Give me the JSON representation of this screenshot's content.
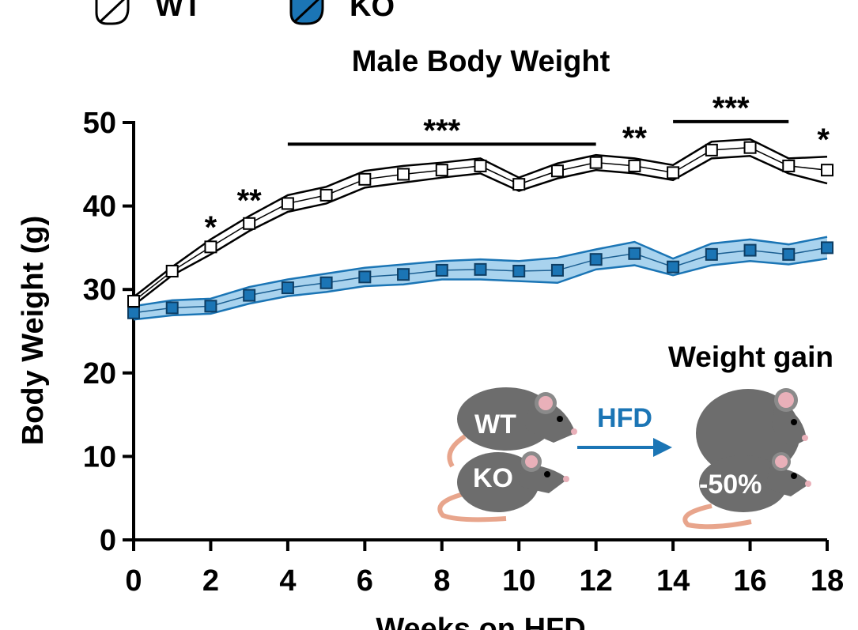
{
  "legend": [
    {
      "label": "WT",
      "fill": "#ffffff"
    },
    {
      "label": "KO",
      "fill": "#1b75b5"
    }
  ],
  "colors": {
    "wt": "#000000",
    "ko": "#1b75b5",
    "ko_band": "#a9d3ee"
  },
  "chart_data": {
    "type": "line",
    "title": "Male Body Weight",
    "xlabel": "Weeks on HFD",
    "ylabel": "Body Weight (g)",
    "xlim": [
      0,
      18
    ],
    "ylim": [
      0,
      50
    ],
    "x_ticks": [
      0,
      2,
      4,
      6,
      8,
      10,
      12,
      14,
      16,
      18
    ],
    "y_ticks": [
      0,
      10,
      20,
      30,
      40,
      50
    ],
    "x": [
      0,
      1,
      2,
      3,
      4,
      5,
      6,
      7,
      8,
      9,
      10,
      11,
      12,
      13,
      14,
      15,
      16,
      17,
      18
    ],
    "series": [
      {
        "name": "WT",
        "values": [
          28.6,
          32.2,
          35.1,
          37.9,
          40.3,
          41.3,
          43.2,
          43.8,
          44.3,
          44.8,
          42.6,
          44.2,
          45.2,
          44.8,
          44.0,
          46.7,
          47.0,
          44.8,
          44.3
        ],
        "error": [
          0.5,
          0.5,
          0.9,
          0.9,
          1.0,
          1.0,
          1.0,
          1.0,
          0.9,
          0.9,
          0.8,
          0.9,
          0.9,
          0.9,
          0.9,
          1.0,
          1.0,
          0.9,
          1.6
        ]
      },
      {
        "name": "KO",
        "values": [
          27.2,
          27.8,
          28.0,
          29.3,
          30.2,
          30.8,
          31.5,
          31.8,
          32.3,
          32.4,
          32.2,
          32.3,
          33.6,
          34.3,
          32.7,
          34.2,
          34.7,
          34.2,
          35.0
        ],
        "error": [
          0.8,
          0.9,
          0.9,
          1.0,
          1.0,
          1.1,
          1.1,
          1.2,
          1.1,
          1.2,
          1.2,
          1.5,
          1.2,
          1.4,
          1.0,
          1.3,
          1.3,
          1.2,
          1.3
        ]
      }
    ],
    "significance": [
      {
        "label": "*",
        "x": 2,
        "y": 37.5
      },
      {
        "label": "**",
        "x": 3,
        "y": 40.7
      },
      {
        "label": "***",
        "x_start": 4,
        "x_end": 12,
        "y": 47.6
      },
      {
        "label": "**",
        "x": 13,
        "y": 48.2
      },
      {
        "label": "***",
        "x_start": 14,
        "x_end": 17,
        "y": 50.3
      },
      {
        "label": "*",
        "x": 17.9,
        "y": 48.0
      }
    ]
  },
  "inset": {
    "title": "Weight gain",
    "arrow_label": "HFD",
    "mouse_top_label": "WT",
    "mouse_bottom_label": "KO",
    "result_label": "-50%"
  }
}
